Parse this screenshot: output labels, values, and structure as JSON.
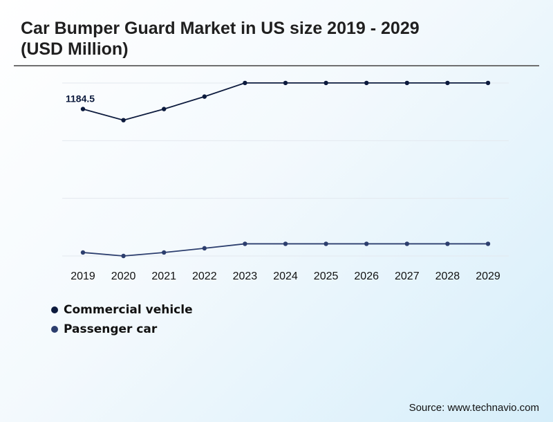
{
  "title": "Car Bumper Guard Market in US size 2019 - 2029 (USD Million)",
  "source": "Source: www.technavio.com",
  "chart_data": {
    "type": "line",
    "x": [
      "2019",
      "2020",
      "2021",
      "2022",
      "2023",
      "2024",
      "2025",
      "2026",
      "2027",
      "2028",
      "2029"
    ],
    "ylim": [
      0,
      1400
    ],
    "grid": true,
    "legend_position": "bottom-left",
    "annotations": [
      {
        "series": "Commercial vehicle",
        "x": "2019",
        "label": "1184.5"
      }
    ],
    "series": [
      {
        "name": "Commercial vehicle",
        "color": "#0c1a3d",
        "values": [
          1184.5,
          1095,
          1184.5,
          1285,
          1395,
          1395,
          1395,
          1395,
          1395,
          1395,
          1395
        ]
      },
      {
        "name": "Passenger car",
        "color": "#2c3e6e",
        "values": [
          28,
          0,
          28,
          62,
          98,
          98,
          98,
          98,
          98,
          98,
          98
        ]
      }
    ]
  }
}
